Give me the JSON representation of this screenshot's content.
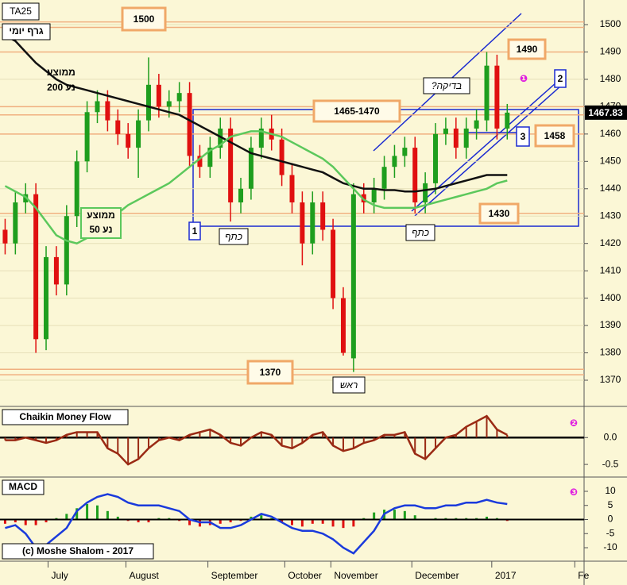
{
  "chart_data": [
    {
      "type": "candlestick",
      "title": "TA25",
      "subtitle": "גרף יומי",
      "xlim": [
        0,
        57
      ],
      "ylim": [
        1361,
        1509
      ],
      "yticks": [
        1370,
        1380,
        1390,
        1400,
        1410,
        1420,
        1430,
        1440,
        1450,
        1460,
        1470,
        1480,
        1490,
        1500
      ],
      "grid": true,
      "up_color": "#1e9e1e",
      "down_color": "#e01010",
      "open": [
        1425,
        1420,
        1435,
        1438,
        1385,
        1415,
        1405,
        1430,
        1450,
        1468,
        1472,
        1465,
        1460,
        1455,
        1465,
        1478,
        1470,
        1472,
        1475,
        1452,
        1448,
        1455,
        1462,
        1435,
        1440,
        1455,
        1462,
        1458,
        1445,
        1435,
        1420,
        1435,
        1425,
        1400,
        1378,
        1438,
        1435,
        1440,
        1448,
        1452,
        1455,
        1435,
        1442,
        1460,
        1462,
        1455,
        1462,
        1465,
        1485,
        1462
      ],
      "high": [
        1429,
        1439,
        1442,
        1442,
        1419,
        1419,
        1434,
        1454,
        1472,
        1476,
        1476,
        1469,
        1464,
        1469,
        1488,
        1482,
        1476,
        1479,
        1479,
        1456,
        1459,
        1466,
        1466,
        1444,
        1459,
        1466,
        1467,
        1462,
        1449,
        1439,
        1439,
        1439,
        1429,
        1404,
        1442,
        1442,
        1444,
        1452,
        1456,
        1459,
        1459,
        1446,
        1464,
        1466,
        1466,
        1466,
        1469,
        1490,
        1489,
        1471
      ],
      "low": [
        1416,
        1416,
        1431,
        1380,
        1381,
        1401,
        1401,
        1426,
        1446,
        1464,
        1461,
        1456,
        1451,
        1444,
        1461,
        1466,
        1466,
        1468,
        1448,
        1444,
        1444,
        1451,
        1428,
        1431,
        1436,
        1451,
        1454,
        1441,
        1431,
        1412,
        1416,
        1421,
        1396,
        1379,
        1373,
        1431,
        1431,
        1436,
        1444,
        1448,
        1431,
        1431,
        1438,
        1456,
        1451,
        1451,
        1458,
        1461,
        1458,
        1458
      ],
      "close": [
        1420,
        1435,
        1438,
        1385,
        1415,
        1405,
        1430,
        1450,
        1468,
        1472,
        1465,
        1460,
        1455,
        1465,
        1478,
        1470,
        1472,
        1475,
        1452,
        1448,
        1455,
        1462,
        1435,
        1440,
        1455,
        1462,
        1458,
        1445,
        1435,
        1420,
        1435,
        1425,
        1400,
        1380,
        1438,
        1435,
        1440,
        1448,
        1452,
        1455,
        1435,
        1442,
        1460,
        1462,
        1455,
        1462,
        1465,
        1485,
        1462,
        1467.83
      ],
      "series": [
        {
          "name": [
            "ממוצע",
            "נע 200"
          ],
          "color": "#111111",
          "values": [
            1496,
            1494,
            1490,
            1486,
            1483,
            1480,
            1478,
            1477,
            1476,
            1475,
            1474,
            1473,
            1472,
            1471,
            1470,
            1469,
            1468,
            1467,
            1465,
            1463,
            1461,
            1459,
            1457,
            1455,
            1453,
            1452,
            1451,
            1450,
            1449,
            1448,
            1447,
            1446,
            1444,
            1442,
            1441,
            1440,
            1440,
            1439.5,
            1439.5,
            1439,
            1439,
            1439.5,
            1440,
            1441,
            1442,
            1443,
            1444,
            1445,
            1445,
            1445
          ]
        },
        {
          "name": [
            "ממוצע",
            "נע 50"
          ],
          "color": "#5cc85c",
          "values": [
            1441,
            1439,
            1437,
            1433,
            1428,
            1423,
            1421,
            1420,
            1422,
            1425,
            1428,
            1431,
            1434,
            1436,
            1438,
            1440,
            1442,
            1445,
            1448,
            1451,
            1454,
            1456,
            1459,
            1460,
            1461,
            1461,
            1460,
            1459,
            1457,
            1455,
            1453,
            1451,
            1448,
            1444,
            1440,
            1436,
            1434,
            1433,
            1433,
            1433,
            1433,
            1434,
            1435,
            1436,
            1437,
            1438,
            1439,
            1440,
            1442,
            1443
          ]
        }
      ],
      "levels": [
        1501,
        1499,
        1490,
        1470,
        1467,
        1460,
        1431,
        1374,
        1372
      ],
      "level_color": "#f0b080",
      "annotations": [
        "1500",
        "1490",
        "1465-1470",
        "1458",
        "1430",
        "1370",
        "1",
        "2",
        "3",
        "כתף",
        "כתף",
        "ראש",
        "בדיקה?",
        "❶"
      ]
    },
    {
      "type": "area",
      "title": "Chaikin Money Flow",
      "color": "#9a2a14",
      "xlim": [
        0,
        57
      ],
      "ylim": [
        -0.72,
        0.55
      ],
      "yticks": [
        {
          "value": 0,
          "label": "0.0"
        },
        -0.5
      ],
      "values": [
        -0.05,
        -0.05,
        0.0,
        -0.05,
        -0.1,
        -0.05,
        0.05,
        0.1,
        0.1,
        0.1,
        -0.2,
        -0.3,
        -0.5,
        -0.4,
        -0.2,
        -0.05,
        0.0,
        -0.05,
        0.05,
        0.1,
        0.15,
        0.05,
        -0.1,
        -0.15,
        0.0,
        0.1,
        0.05,
        -0.15,
        -0.2,
        -0.1,
        0.05,
        0.1,
        -0.15,
        -0.25,
        -0.2,
        -0.1,
        -0.05,
        0.05,
        0.05,
        0.1,
        -0.3,
        -0.4,
        -0.2,
        0.0,
        0.05,
        0.2,
        0.3,
        0.4,
        0.15,
        0.05
      ],
      "annotations": [
        "❷"
      ]
    },
    {
      "type": "macd",
      "title": "MACD",
      "footer": "(c) Moshe Shalom - 2017",
      "xlim": [
        0,
        57
      ],
      "ylim": [
        -14.5,
        14.5
      ],
      "yticks": [
        10,
        5,
        0,
        -5,
        -10
      ],
      "series": [
        {
          "color": "#1a3adc",
          "values": [
            -3,
            -2,
            -5,
            -10,
            -9,
            -6,
            -3,
            3,
            6,
            8,
            9,
            8,
            6,
            5,
            5,
            5,
            4,
            3,
            0,
            -1,
            -1,
            -3,
            -3,
            -2,
            0,
            2,
            1,
            -1,
            -3,
            -4,
            -4,
            -5,
            -7,
            -10,
            -12,
            -8,
            -4,
            2,
            4,
            5,
            5,
            4,
            4,
            5,
            5,
            6,
            6,
            7,
            6,
            5.5
          ]
        },
        {
          "colors": [
            "#1e9e1e",
            "#e01010"
          ],
          "values": [
            -1.5,
            -1,
            -2,
            -2,
            -1,
            0.5,
            2,
            4,
            5.5,
            5,
            3,
            1,
            -0.5,
            -1,
            -1,
            0.5,
            0.5,
            -0.5,
            -2,
            -2.5,
            -2,
            -1.5,
            -1,
            -0.5,
            1,
            1.5,
            0.5,
            -1,
            -2,
            -2.5,
            -1.5,
            -1.5,
            -2.5,
            -3,
            -2.5,
            0.5,
            2.5,
            3.5,
            3.5,
            3,
            1.5,
            0,
            0.5,
            0.5,
            0.5,
            0.5,
            0.5,
            1,
            0.5,
            -0.5
          ]
        }
      ],
      "xticks": [
        {
          "value": 5.0,
          "label": "July"
        },
        {
          "value": 12.6,
          "label": "August"
        },
        {
          "value": 20.6,
          "label": "September"
        },
        {
          "value": 28.1,
          "label": "October"
        },
        {
          "value": 32.6,
          "label": "November"
        },
        {
          "value": 40.5,
          "label": "December"
        },
        {
          "value": 48.3,
          "label": "2017"
        },
        {
          "value": 56.4,
          "label": "Fe"
        }
      ],
      "annotations": [
        "❸"
      ]
    }
  ]
}
